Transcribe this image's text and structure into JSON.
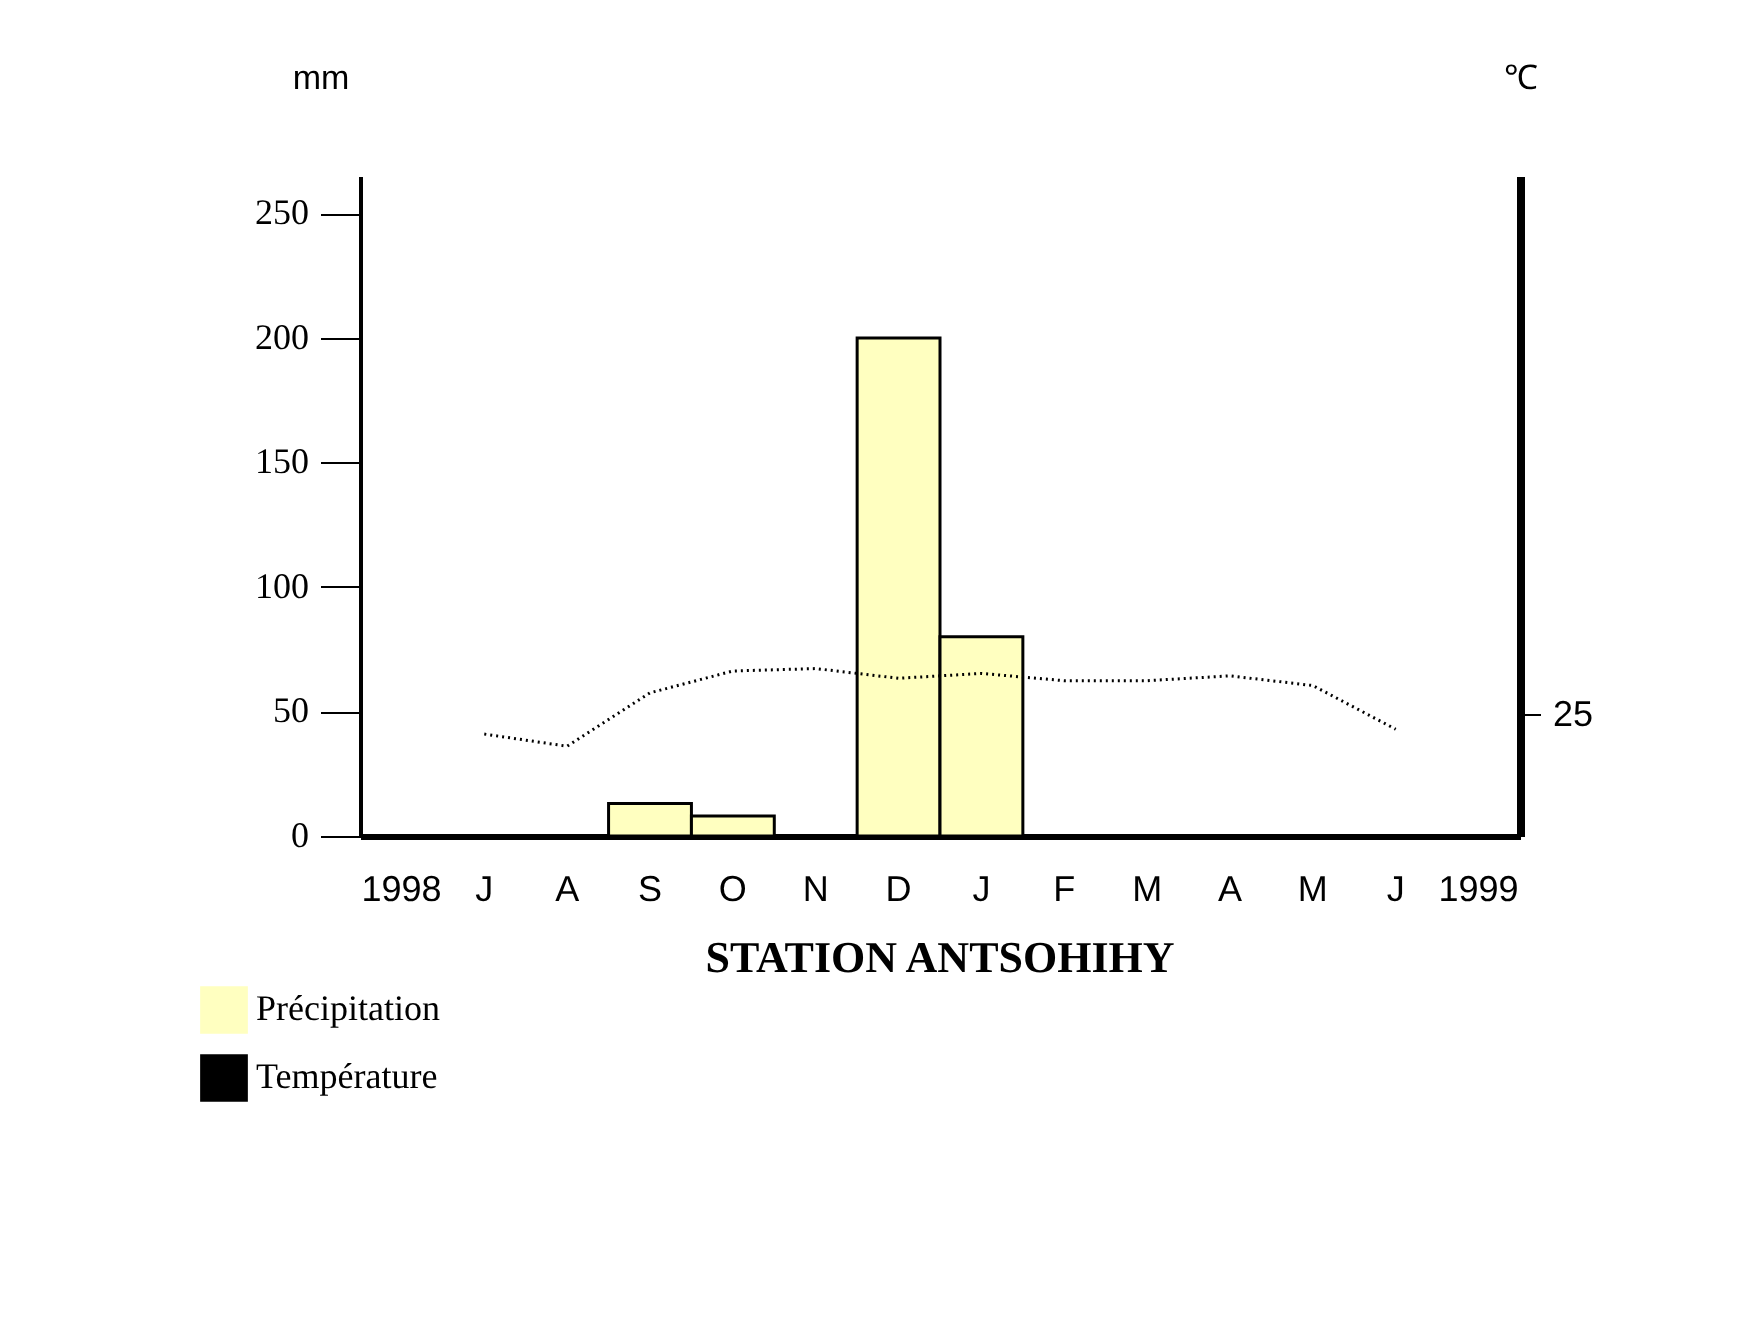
{
  "chart_data": {
    "type": "bar",
    "title": "STATION ANTSOHIHY",
    "ylabel": "mm",
    "y2label": "℃",
    "categories": [
      "1998",
      "J",
      "A",
      "S",
      "O",
      "N",
      "D",
      "J",
      "F",
      "M",
      "A",
      "M",
      "J",
      "1999"
    ],
    "series": [
      {
        "name": "Précipitation",
        "color": "#ffffc0",
        "values": [
          null,
          null,
          null,
          13,
          8,
          null,
          200,
          80,
          null,
          null,
          null,
          null,
          null,
          null
        ]
      },
      {
        "name": "Température",
        "type": "line",
        "axis": "y2",
        "color": "#000000",
        "line_style": "dotted",
        "values": [
          null,
          21,
          18.5,
          29.5,
          34,
          34.5,
          32.5,
          33.5,
          32,
          32,
          33,
          31,
          22,
          null
        ]
      }
    ],
    "ylim": [
      0,
      265
    ],
    "yticks": [
      0,
      50,
      100,
      150,
      200,
      250
    ],
    "y2lim": [
      0,
      136
    ],
    "y2ticks": [
      25
    ],
    "grid": false,
    "legend": "bottom left",
    "marker": "none"
  }
}
